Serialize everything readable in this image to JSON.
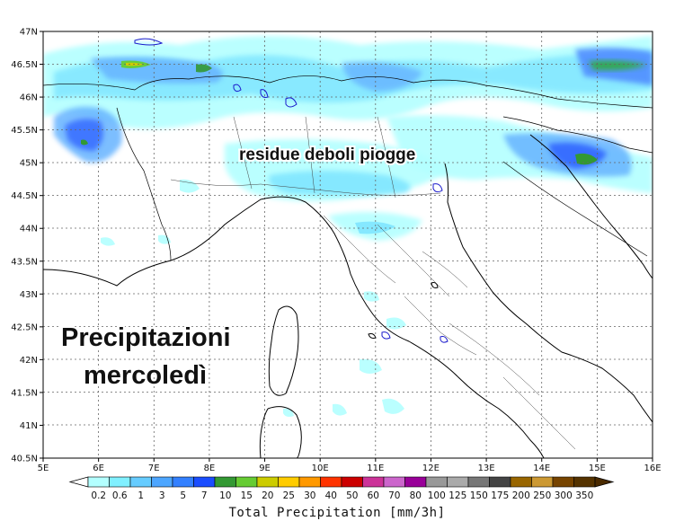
{
  "map": {
    "lat_labels": [
      "47N",
      "46.5N",
      "46N",
      "45.5N",
      "45N",
      "44.5N",
      "44N",
      "43.5N",
      "43N",
      "42.5N",
      "42N",
      "41.5N",
      "41N",
      "40.5N"
    ],
    "lon_labels": [
      "5E",
      "6E",
      "7E",
      "8E",
      "9E",
      "10E",
      "11E",
      "12E",
      "13E",
      "14E",
      "15E",
      "16E"
    ]
  },
  "annotations": {
    "residue": "residue deboli piogge",
    "title_line1": "Precipitazioni",
    "title_line2": "mercoledì"
  },
  "colorbar": {
    "labels": [
      "0.2",
      "0.6",
      "1",
      "3",
      "5",
      "7",
      "10",
      "15",
      "20",
      "25",
      "30",
      "40",
      "50",
      "60",
      "70",
      "80",
      "100",
      "125",
      "150",
      "175",
      "200",
      "250",
      "300",
      "350"
    ],
    "colors": [
      "#b3ffff",
      "#80f0ff",
      "#66ccff",
      "#4da6ff",
      "#3380ff",
      "#1a4dff",
      "#339933",
      "#66cc33",
      "#cccc00",
      "#ffcc00",
      "#ff9900",
      "#ff3300",
      "#cc0000",
      "#cc3399",
      "#cc66cc",
      "#990099",
      "#999999",
      "#aaaaaa",
      "#777777",
      "#444444",
      "#996600",
      "#cc9933",
      "#774400",
      "#553300"
    ],
    "title": "Total Precipitation [mm/3h]"
  }
}
